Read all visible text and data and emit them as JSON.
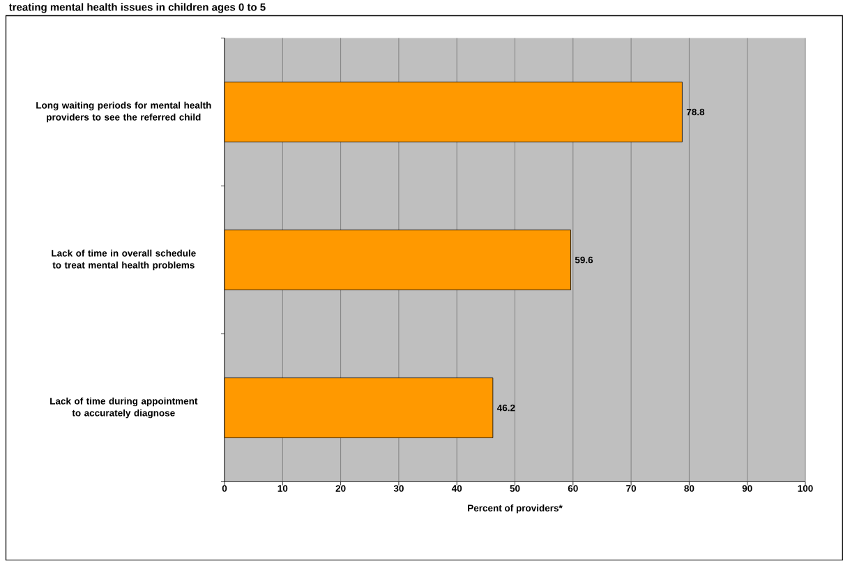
{
  "chart_data": {
    "type": "bar",
    "orientation": "horizontal",
    "title": "treating mental health issues in children ages 0 to 5",
    "xlabel": "Percent of providers*",
    "categories": [
      "Long waiting periods for mental health providers to see the referred child",
      "Lack of time in overall schedule to treat mental health problems",
      "Lack of time during appointment to accurately diagnose"
    ],
    "values": [
      78.8,
      59.6,
      46.2
    ],
    "color": "#ff9900",
    "xlim": [
      0,
      100
    ],
    "xticks": [
      0,
      10,
      20,
      30,
      40,
      50,
      60,
      70,
      80,
      90,
      100
    ],
    "grid": "x",
    "data_labels": true
  }
}
